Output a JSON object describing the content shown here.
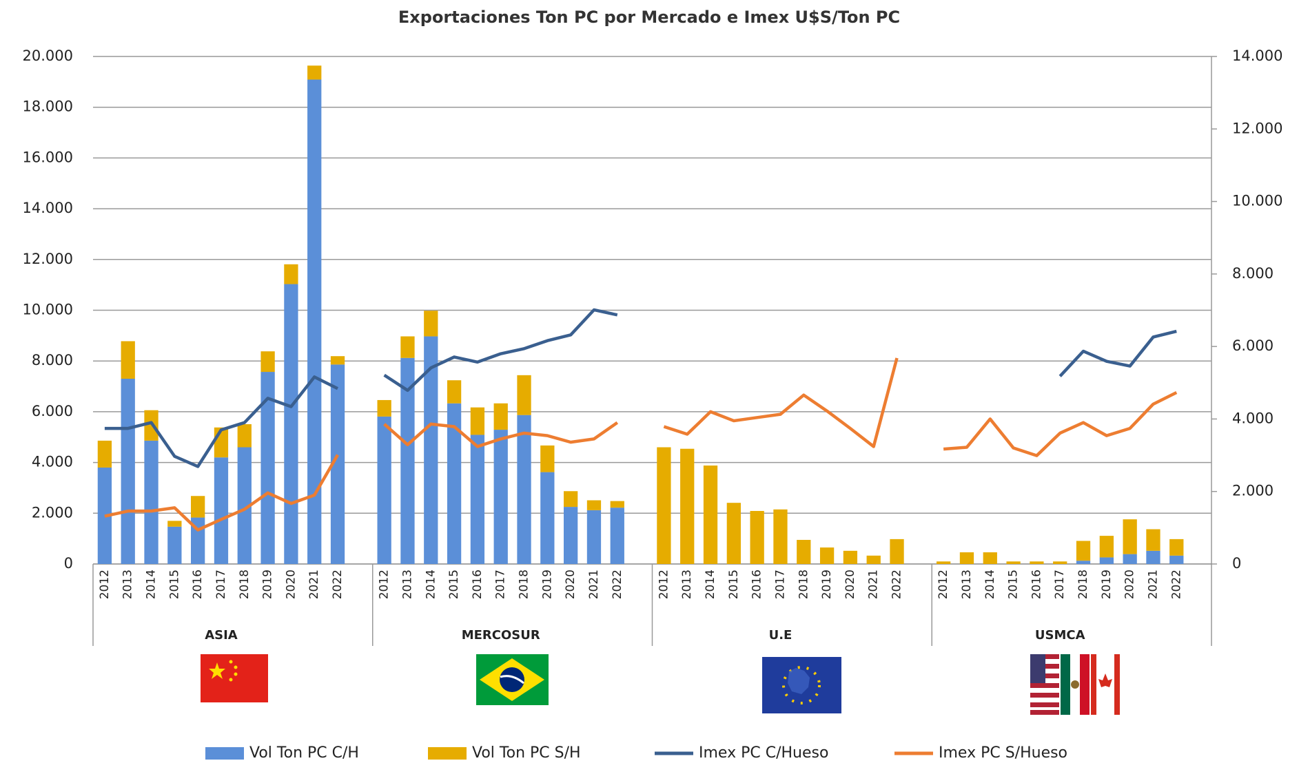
{
  "chart_data": {
    "type": "bar",
    "title": "Exportaciones Ton PC por Mercado e Imex U$S/Ton PC",
    "groups": [
      {
        "name": "ASIA",
        "categories": [
          "2012",
          "2013",
          "2014",
          "2015",
          "2016",
          "2017",
          "2018",
          "2019",
          "2020",
          "2021",
          "2022"
        ]
      },
      {
        "name": "MERCOSUR",
        "categories": [
          "2012",
          "2013",
          "2014",
          "2015",
          "2016",
          "2017",
          "2018",
          "2019",
          "2020",
          "2021",
          "2022"
        ]
      },
      {
        "name": "U.E",
        "categories": [
          "2012",
          "2013",
          "2014",
          "2015",
          "2016",
          "2017",
          "2018",
          "2019",
          "2020",
          "2021",
          "2022"
        ]
      },
      {
        "name": "USMCA",
        "categories": [
          "2012",
          "2013",
          "2014",
          "2015",
          "2016",
          "2017",
          "2018",
          "2019",
          "2020",
          "2021",
          "2022"
        ]
      }
    ],
    "series": [
      {
        "name": "Vol Ton PC C/H",
        "type": "bar",
        "color": "#5b8fd8",
        "values": [
          3800,
          7300,
          4860,
          1470,
          1830,
          4200,
          4600,
          7570,
          11030,
          19090,
          7860,
          5810,
          8120,
          8970,
          6330,
          5090,
          5290,
          5870,
          3620,
          2250,
          2120,
          2220,
          0,
          0,
          0,
          0,
          0,
          0,
          0,
          0,
          0,
          0,
          0,
          0,
          0,
          0,
          0,
          0,
          0,
          130,
          260,
          390,
          520,
          330
        ]
      },
      {
        "name": "Vol Ton PC S/H",
        "type": "bar",
        "color": "#e6ac00",
        "values": [
          1060,
          1480,
          1200,
          230,
          850,
          1180,
          910,
          810,
          780,
          550,
          330,
          650,
          850,
          1010,
          910,
          1080,
          1040,
          1570,
          1050,
          620,
          390,
          260,
          4600,
          4540,
          3880,
          2410,
          2090,
          2150,
          950,
          650,
          520,
          330,
          980,
          100,
          460,
          460,
          100,
          100,
          100,
          780,
          850,
          1370,
          850,
          650
        ]
      },
      {
        "name": "Imex PC C/Hueso",
        "type": "line",
        "axis": "y2",
        "color": "#3a5f8f",
        "values": [
          3740,
          3740,
          3900,
          2970,
          2690,
          3700,
          3900,
          4570,
          4340,
          5160,
          4840,
          5210,
          4790,
          5410,
          5710,
          5570,
          5800,
          5940,
          6160,
          6320,
          7010,
          6870,
          null,
          null,
          null,
          null,
          null,
          null,
          null,
          null,
          null,
          null,
          null,
          null,
          null,
          null,
          null,
          null,
          5180,
          5870,
          5590,
          5460,
          6260,
          6420
        ]
      },
      {
        "name": "Imex PC S/Hueso",
        "type": "line",
        "axis": "y2",
        "color": "#ed7d31",
        "values": [
          1320,
          1460,
          1460,
          1550,
          940,
          1230,
          1510,
          1960,
          1670,
          1900,
          3010,
          3860,
          3290,
          3860,
          3790,
          3240,
          3450,
          3610,
          3540,
          3360,
          3450,
          3900,
          3790,
          3580,
          4200,
          3950,
          4040,
          4130,
          4660,
          4220,
          3740,
          3240,
          5680,
          3170,
          3220,
          4000,
          3200,
          2990,
          3610,
          3900,
          3540,
          3740,
          4410,
          4730
        ]
      }
    ],
    "stacked": true,
    "ylim": [
      0,
      20000
    ],
    "yticks": [
      0,
      {
        "value": 2000,
        "label": "2.000"
      },
      {
        "value": 4000,
        "label": "4.000"
      },
      {
        "value": 6000,
        "label": "6.000"
      },
      {
        "value": 8000,
        "label": "8.000"
      },
      {
        "value": 10000,
        "label": "10.000"
      },
      {
        "value": 12000,
        "label": "12.000"
      },
      {
        "value": 14000,
        "label": "14.000"
      },
      {
        "value": 16000,
        "label": "16.000"
      },
      {
        "value": 18000,
        "label": "18.000"
      },
      {
        "value": 20000,
        "label": "20.000"
      }
    ],
    "y2lim": [
      0,
      14000
    ],
    "y2ticks": [
      0,
      {
        "value": 2000,
        "label": "2.000"
      },
      {
        "value": 4000,
        "label": "4.000"
      },
      {
        "value": 6000,
        "label": "6.000"
      },
      {
        "value": 8000,
        "label": "8.000"
      },
      {
        "value": 10000,
        "label": "10.000"
      },
      {
        "value": 12000,
        "label": "12.000"
      },
      {
        "value": 14000,
        "label": "14.000"
      }
    ],
    "grid": true,
    "legend": "bottom"
  }
}
